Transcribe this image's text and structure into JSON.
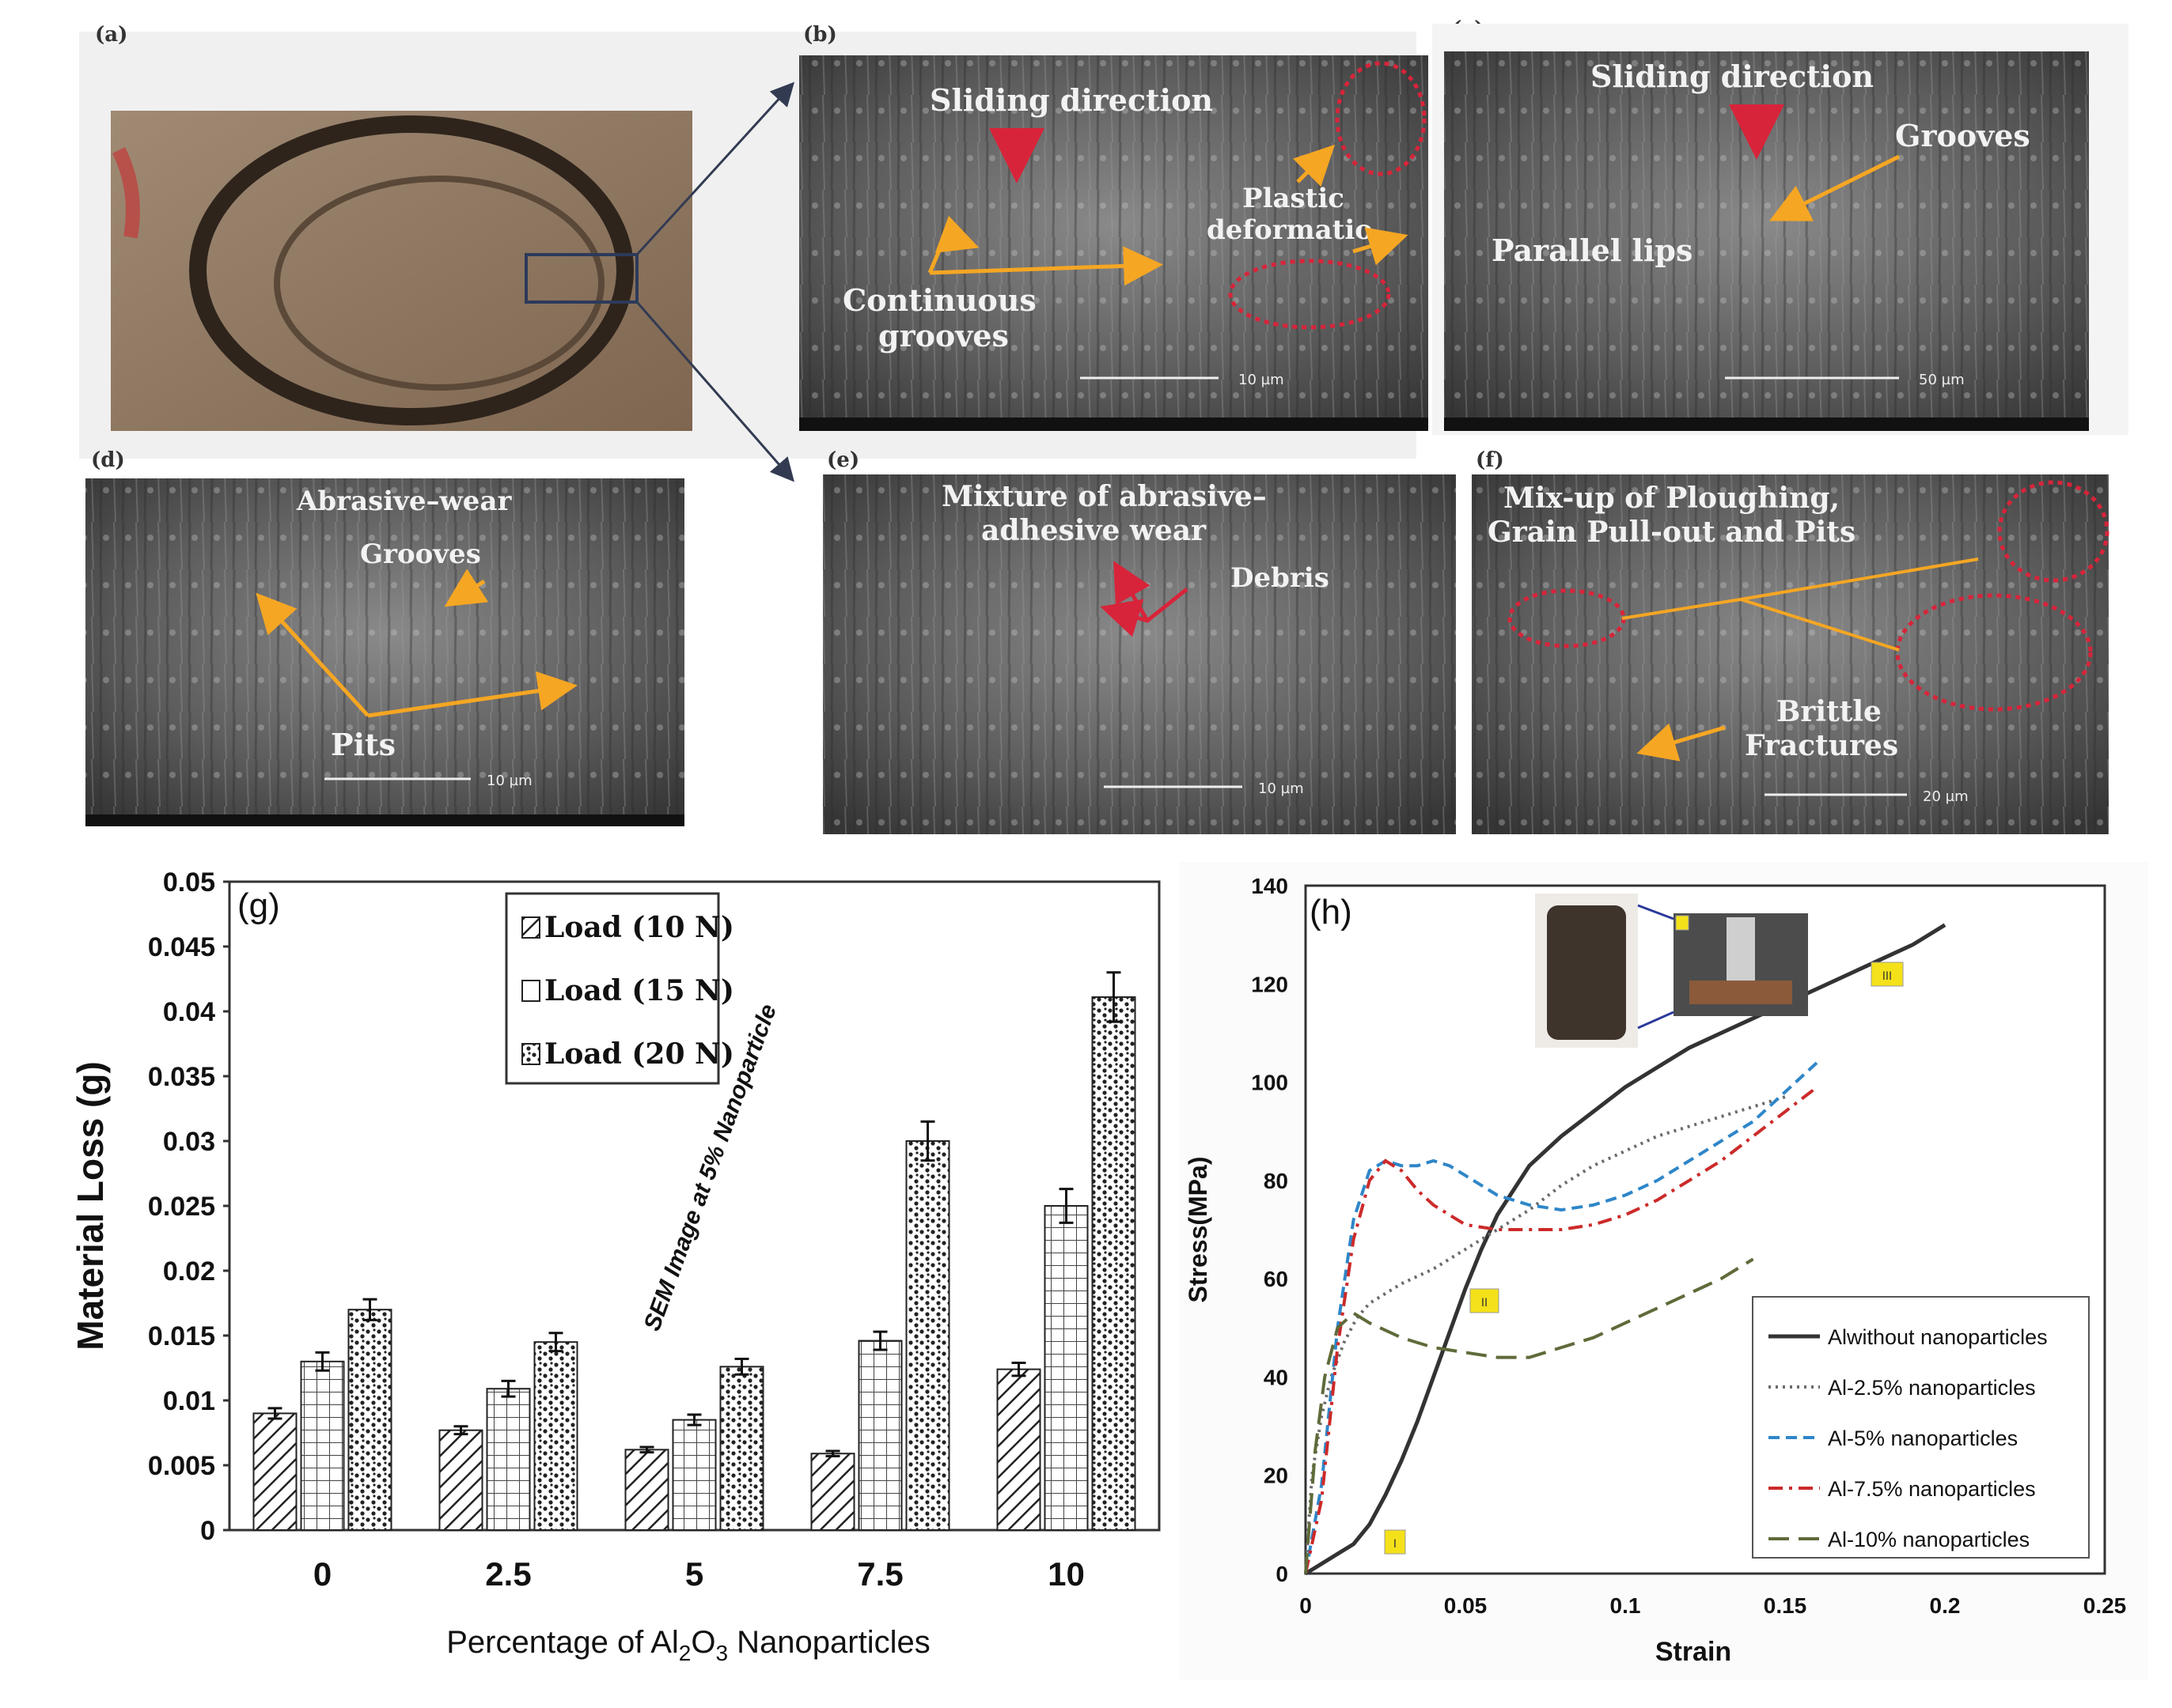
{
  "panels": {
    "a": {
      "label": "(a)"
    },
    "b": {
      "label": "(b)",
      "sliding": "Sliding direction",
      "plastic1": "Plastic",
      "plastic2": "deformatio",
      "cont1": "Continuous",
      "cont2": "grooves",
      "scale": "10 µm"
    },
    "c": {
      "label": "(c)",
      "sliding": "Sliding direction",
      "grooves": "Grooves",
      "lips": "Parallel lips",
      "scale": "50 µm"
    },
    "d": {
      "label": "(d)",
      "abrasive": "Abrasive–wear",
      "grooves": "Grooves",
      "pits": "Pits",
      "scale": "10 µm"
    },
    "e": {
      "label": "(e)",
      "mix1": "Mixture of abrasive–",
      "mix2": "adhesive wear",
      "debris": "Debris",
      "scale": "10 µm"
    },
    "f": {
      "label": "(f)",
      "mix1": "Mix-up of Ploughing,",
      "mix2": "Grain Pull-out and Pits",
      "brittle1": "Brittle",
      "brittle2": "Fractures",
      "scale": "20 µm"
    }
  },
  "chart_data": [
    {
      "id": "g",
      "type": "bar",
      "panel_label": "(g)",
      "annotation": "SEM Image at 5% Nanoparticle",
      "xlabel_main": "Percentage of Al",
      "xlabel_sub1": "2",
      "xlabel_mid": "O",
      "xlabel_sub2": "3",
      "xlabel_end": " Nanoparticles",
      "ylabel": "Material Loss (g)",
      "ylim": [
        0,
        0.05
      ],
      "yticks": [
        "0",
        "0.005",
        "0.01",
        "0.015",
        "0.02",
        "0.025",
        "0.03",
        "0.035",
        "0.04",
        "0.045",
        "0.05"
      ],
      "categories": [
        "0",
        "2.5",
        "5",
        "7.5",
        "10"
      ],
      "series": [
        {
          "name": "Load (10 N)",
          "values": [
            0.009,
            0.0077,
            0.0062,
            0.0059,
            0.0124
          ],
          "errors": [
            0.0004,
            0.0003,
            0.0002,
            0.0002,
            0.0005
          ]
        },
        {
          "name": "Load (15 N)",
          "values": [
            0.013,
            0.0109,
            0.0085,
            0.0146,
            0.025
          ],
          "errors": [
            0.0007,
            0.0006,
            0.0004,
            0.0007,
            0.0013
          ]
        },
        {
          "name": "Load (20 N)",
          "values": [
            0.017,
            0.0145,
            0.0126,
            0.03,
            0.0411
          ],
          "errors": [
            0.0008,
            0.0007,
            0.0006,
            0.0015,
            0.0019
          ]
        }
      ],
      "legend_position": "top-center"
    },
    {
      "id": "h",
      "type": "line",
      "panel_label": "(h)",
      "xlabel": "Strain",
      "ylabel": "Stress(MPa)",
      "xlim": [
        0,
        0.25
      ],
      "ylim": [
        0,
        140
      ],
      "xticks": [
        "0",
        "0.05",
        "0.1",
        "0.15",
        "0.2",
        "0.25"
      ],
      "yticks": [
        "0",
        "20",
        "40",
        "60",
        "80",
        "100",
        "120",
        "140"
      ],
      "markers": [
        "I",
        "II",
        "III"
      ],
      "legend_position": "bottom-right",
      "series": [
        {
          "name": "Alwithout nanoparticles",
          "color": "#333333",
          "style": "solid",
          "x": [
            0,
            0.005,
            0.01,
            0.015,
            0.02,
            0.025,
            0.03,
            0.035,
            0.04,
            0.045,
            0.05,
            0.055,
            0.06,
            0.07,
            0.08,
            0.09,
            0.1,
            0.11,
            0.12,
            0.13,
            0.14,
            0.15,
            0.16,
            0.17,
            0.18,
            0.19,
            0.2
          ],
          "y": [
            0,
            2,
            4,
            6,
            10,
            16,
            23,
            31,
            40,
            49,
            58,
            66,
            73,
            83,
            89,
            94,
            99,
            103,
            107,
            110,
            113,
            116,
            119,
            122,
            125,
            128,
            132
          ]
        },
        {
          "name": "Al-2.5% nanoparticles",
          "color": "#6b6b6b",
          "style": "dotted",
          "x": [
            0,
            0.002,
            0.005,
            0.008,
            0.012,
            0.016,
            0.02,
            0.03,
            0.04,
            0.05,
            0.06,
            0.07,
            0.08,
            0.09,
            0.1,
            0.11,
            0.12,
            0.13,
            0.14,
            0.15
          ],
          "y": [
            0,
            20,
            32,
            40,
            47,
            52,
            55,
            59,
            62,
            66,
            70,
            74,
            79,
            83,
            86,
            89,
            91,
            93,
            95,
            97
          ]
        },
        {
          "name": "Al-5% nanoparticles",
          "color": "#2f86c8",
          "style": "dashed",
          "x": [
            0,
            0.005,
            0.01,
            0.015,
            0.02,
            0.025,
            0.03,
            0.035,
            0.04,
            0.045,
            0.05,
            0.06,
            0.07,
            0.08,
            0.09,
            0.1,
            0.11,
            0.12,
            0.13,
            0.14,
            0.15,
            0.16
          ],
          "y": [
            0,
            18,
            50,
            72,
            82,
            84,
            83,
            83,
            84,
            83,
            81,
            77,
            75,
            74,
            75,
            77,
            80,
            84,
            88,
            92,
            98,
            104
          ]
        },
        {
          "name": "Al-7.5% nanoparticles",
          "color": "#cc2a2a",
          "style": "dashdot",
          "x": [
            0,
            0.005,
            0.01,
            0.015,
            0.02,
            0.025,
            0.03,
            0.035,
            0.04,
            0.05,
            0.06,
            0.07,
            0.08,
            0.09,
            0.1,
            0.11,
            0.12,
            0.13,
            0.14,
            0.15,
            0.16
          ],
          "y": [
            0,
            15,
            46,
            68,
            80,
            84,
            82,
            78,
            75,
            71,
            70,
            70,
            70,
            71,
            73,
            76,
            80,
            84,
            89,
            94,
            99
          ]
        },
        {
          "name": "Al-10% nanoparticles",
          "color": "#5f6b3a",
          "style": "longdash",
          "x": [
            0,
            0.003,
            0.006,
            0.01,
            0.015,
            0.02,
            0.03,
            0.04,
            0.05,
            0.06,
            0.07,
            0.08,
            0.09,
            0.1,
            0.11,
            0.12,
            0.13,
            0.14
          ],
          "y": [
            0,
            25,
            40,
            50,
            53,
            51,
            48,
            46,
            45,
            44,
            44,
            46,
            48,
            51,
            54,
            57,
            60,
            64
          ]
        }
      ]
    }
  ]
}
